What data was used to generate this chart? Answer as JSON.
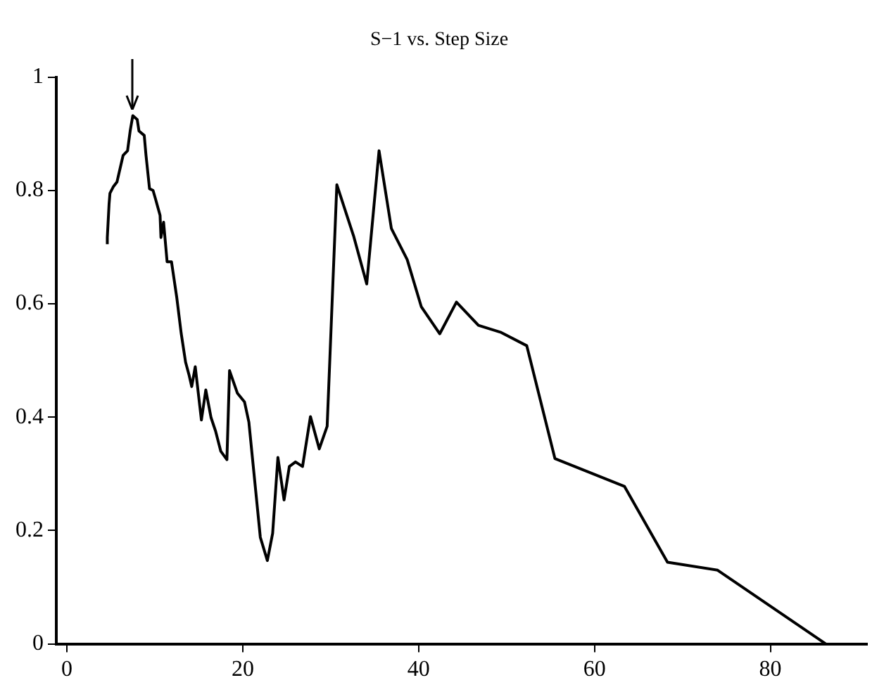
{
  "chart_data": {
    "type": "line",
    "title": "S−1 vs. Step Size",
    "xlim": [
      -1.2,
      91
    ],
    "xticks": [
      0,
      20,
      40,
      60,
      80
    ],
    "ylim": [
      0,
      1
    ],
    "yticks": [
      0,
      0.2,
      0.4,
      0.6,
      0.8,
      1
    ],
    "grid": false,
    "legend": false,
    "marker": "none",
    "line_style": "solid",
    "series": [
      {
        "color": "#000000",
        "x": [
          4.6,
          4.6,
          4.8,
          4.9,
          5.3,
          5.7,
          6.1,
          6.4,
          6.9,
          7.2,
          7.5,
          8.0,
          8.2,
          8.8,
          9.0,
          9.4,
          9.8,
          10.1,
          10.6,
          10.7,
          11.0,
          11.4,
          11.9,
          12.5,
          13.0,
          13.5,
          13.9,
          14.2,
          14.6,
          15.3,
          15.8,
          16.4,
          16.9,
          17.5,
          18.2,
          18.5,
          19.4,
          20.2,
          20.7,
          22.0,
          22.8,
          23.4,
          24.0,
          24.7,
          25.3,
          26.0,
          26.8,
          27.7,
          28.7,
          29.6,
          30.7,
          32.6,
          34.1,
          35.5,
          36.9,
          38.7,
          40.3,
          42.4,
          44.3,
          46.8,
          49.3,
          52.3,
          55.5,
          63.4,
          68.3,
          74.0,
          86.3
        ],
        "values": [
          0.705,
          0.717,
          0.776,
          0.795,
          0.807,
          0.815,
          0.842,
          0.862,
          0.87,
          0.905,
          0.932,
          0.925,
          0.905,
          0.897,
          0.862,
          0.803,
          0.8,
          0.784,
          0.756,
          0.717,
          0.744,
          0.674,
          0.674,
          0.611,
          0.548,
          0.497,
          0.474,
          0.454,
          0.489,
          0.395,
          0.448,
          0.399,
          0.376,
          0.34,
          0.325,
          0.482,
          0.442,
          0.427,
          0.391,
          0.188,
          0.147,
          0.195,
          0.329,
          0.254,
          0.313,
          0.321,
          0.313,
          0.401,
          0.344,
          0.384,
          0.81,
          0.72,
          0.635,
          0.87,
          0.733,
          0.678,
          0.595,
          0.547,
          0.603,
          0.562,
          0.55,
          0.526,
          0.327,
          0.278,
          0.144,
          0.13,
          0
        ]
      }
    ]
  }
}
